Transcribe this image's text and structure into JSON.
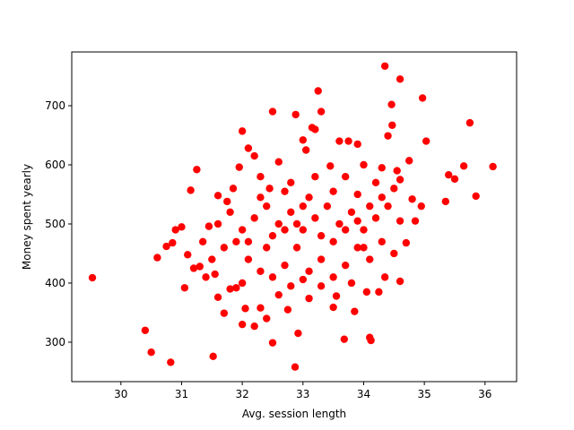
{
  "chart_data": {
    "type": "scatter",
    "xlabel": "Avg. session length",
    "ylabel": "Money spent yearly",
    "color": "#ff0000",
    "xlim": [
      29.19,
      36.52
    ],
    "xticks": [
      30,
      31,
      32,
      33,
      34,
      35,
      36
    ],
    "ylim": [
      233.3,
      790.9
    ],
    "yticks": [
      300,
      400,
      500,
      600,
      700
    ],
    "x": [
      29.53,
      30.4,
      30.5,
      30.82,
      31.52,
      32.5,
      32.87,
      32.92,
      33.68,
      34.1,
      34.12,
      34.35,
      34.6,
      33.25,
      34.97,
      35.75,
      36.13,
      35.85,
      35.65,
      35.5,
      35.4,
      35.35,
      35.03,
      34.46,
      34.47,
      34.4,
      32.0,
      32.5,
      32.88,
      33.3,
      33.2,
      33.15,
      31.15,
      31.25,
      30.6,
      30.75,
      30.85,
      30.9,
      31.0,
      31.05,
      31.1,
      31.2,
      31.3,
      31.35,
      31.45,
      31.6,
      31.7,
      31.8,
      31.9,
      32.0,
      32.05,
      32.2,
      32.3,
      32.4,
      32.6,
      32.75,
      33.0,
      33.1,
      33.5,
      33.55,
      33.85,
      34.05,
      34.25,
      34.35,
      34.6,
      34.7,
      34.85,
      34.95,
      34.8,
      34.55,
      34.75,
      34.6,
      32.1,
      32.2,
      31.95,
      33.0,
      33.05,
      33.6,
      33.75,
      33.9,
      34.0,
      33.45,
      32.6,
      31.85,
      31.6,
      31.75,
      32.3,
      32.45,
      32.8,
      33.2,
      33.7,
      34.2,
      34.3,
      31.5,
      31.7,
      31.9,
      32.1,
      32.3,
      32.5,
      32.7,
      32.9,
      33.1,
      33.3,
      33.5,
      33.7,
      33.9,
      34.1,
      34.3,
      34.5,
      31.6,
      31.8,
      32.0,
      32.2,
      32.4,
      32.6,
      32.8,
      33.0,
      33.2,
      33.4,
      33.6,
      33.8,
      34.0,
      34.2,
      34.4,
      34.6,
      32.1,
      32.5,
      32.7,
      32.9,
      33.3,
      33.5,
      33.7,
      33.9,
      34.1,
      34.3,
      32.3,
      32.7,
      33.1,
      33.5,
      33.9,
      34.5,
      31.4,
      31.55,
      32.0,
      32.8,
      33.3,
      33.8,
      34.0,
      32.4,
      33.0
    ],
    "values": [
      409,
      320,
      283,
      266,
      276,
      299,
      258,
      315,
      305,
      308,
      303,
      767,
      745,
      725,
      713,
      671,
      597,
      547,
      598,
      576,
      583,
      538,
      640,
      702,
      667,
      649,
      657,
      690,
      685,
      690,
      660,
      663,
      557,
      592,
      443,
      462,
      468,
      490,
      495,
      392,
      448,
      425,
      428,
      470,
      496,
      376,
      349,
      390,
      392,
      330,
      357,
      327,
      358,
      340,
      380,
      355,
      406,
      374,
      359,
      378,
      352,
      385,
      385,
      410,
      403,
      468,
      505,
      530,
      542,
      590,
      607,
      575,
      628,
      615,
      596,
      642,
      625,
      640,
      640,
      635,
      600,
      598,
      605,
      560,
      548,
      538,
      580,
      560,
      570,
      580,
      580,
      570,
      595,
      440,
      460,
      470,
      440,
      420,
      410,
      430,
      460,
      420,
      440,
      410,
      430,
      460,
      440,
      470,
      450,
      500,
      520,
      490,
      510,
      530,
      500,
      520,
      490,
      510,
      530,
      500,
      520,
      490,
      510,
      530,
      505,
      470,
      480,
      490,
      500,
      480,
      470,
      490,
      505,
      530,
      545,
      545,
      555,
      545,
      555,
      550,
      560,
      410,
      415,
      400,
      395,
      395,
      400,
      460,
      460,
      530
    ]
  }
}
